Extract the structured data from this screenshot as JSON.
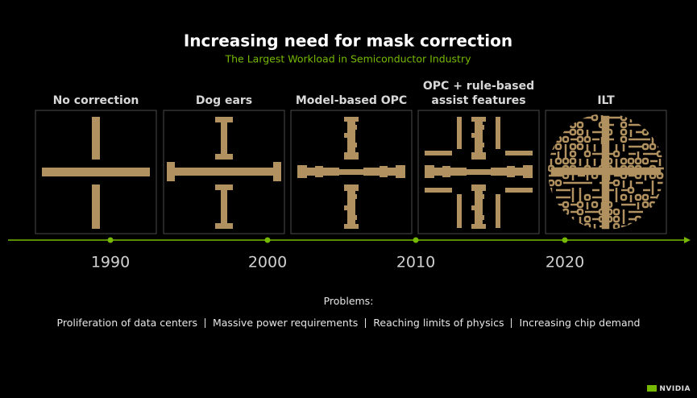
{
  "header": {
    "title": "Increasing need for mask correction",
    "subtitle": "The Largest Workload in Semiconductor Industry"
  },
  "panels": [
    {
      "label": [
        "No correction"
      ]
    },
    {
      "label": [
        "Dog ears"
      ]
    },
    {
      "label": [
        "Model-based OPC"
      ]
    },
    {
      "label": [
        "OPC + rule-based",
        "assist features"
      ]
    },
    {
      "label": [
        "ILT"
      ]
    }
  ],
  "timeline": {
    "years": [
      "1990",
      "2000",
      "2010",
      "2020"
    ]
  },
  "problems": {
    "heading": "Problems:",
    "items": [
      "Proliferation of data centers",
      "Massive power requirements",
      "Reaching limits of physics",
      "Increasing chip demand"
    ]
  },
  "logo": "NVIDIA"
}
